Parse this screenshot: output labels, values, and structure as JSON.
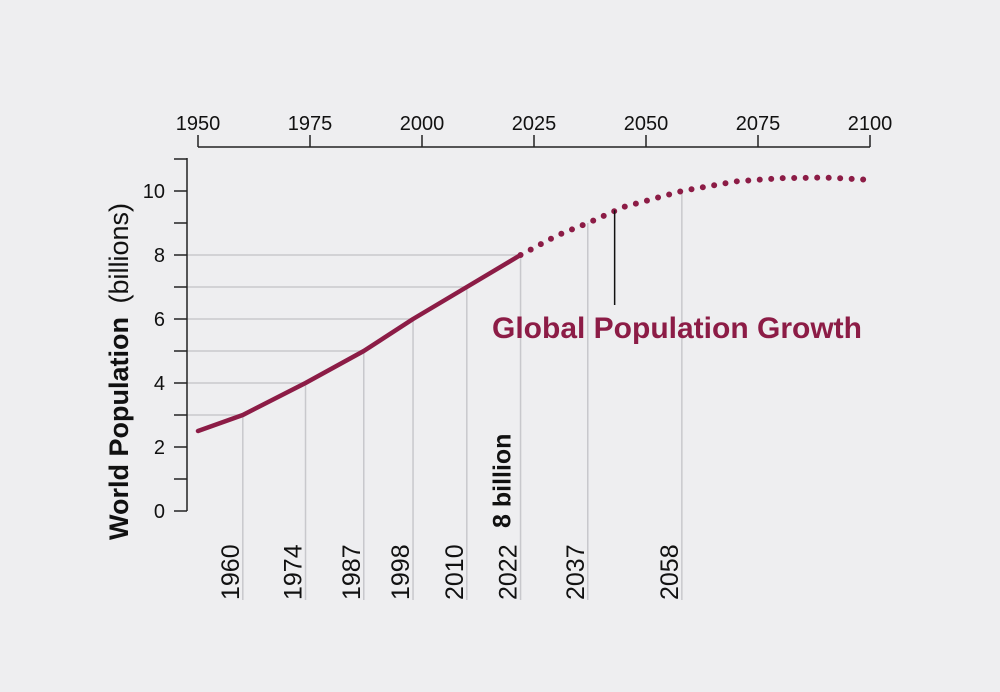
{
  "chart_data": {
    "type": "line",
    "ylabel_bold": "World Population",
    "ylabel_unit": "(billions)",
    "xlim": [
      1950,
      2100
    ],
    "ylim": [
      0,
      11
    ],
    "x_ticks": [
      1950,
      1975,
      2000,
      2025,
      2050,
      2075,
      2100
    ],
    "x_axis_position": "top",
    "y_ticks": [
      0,
      2,
      4,
      6,
      8,
      10
    ],
    "series": [
      {
        "label": "Global Population Growth",
        "color": "#8c1c46",
        "observed": {
          "x": [
            1950,
            1960,
            1974,
            1987,
            1998,
            2010,
            2022
          ],
          "y": [
            2.5,
            3.0,
            4.0,
            5.0,
            6.0,
            7.0,
            8.0
          ]
        },
        "projected": {
          "x": [
            2022,
            2030,
            2037,
            2045,
            2058,
            2070,
            2080,
            2090,
            2100
          ],
          "y": [
            8.0,
            8.6,
            9.0,
            9.5,
            10.0,
            10.3,
            10.4,
            10.42,
            10.35
          ]
        }
      }
    ],
    "milestones": [
      {
        "year": 1960,
        "value": 3,
        "label": "1960"
      },
      {
        "year": 1974,
        "value": 4,
        "label": "1974"
      },
      {
        "year": 1987,
        "value": 5,
        "label": "1987"
      },
      {
        "year": 1998,
        "value": 6,
        "label": "1998"
      },
      {
        "year": 2010,
        "value": 7,
        "label": "2010"
      },
      {
        "year": 2022,
        "value": 8,
        "label": "2022"
      },
      {
        "year": 2037,
        "value": 9,
        "label": "2037"
      },
      {
        "year": 2058,
        "value": 10,
        "label": "2058"
      }
    ],
    "highlight": "8 billion",
    "annotation": {
      "text": "Global Population Growth",
      "year": 2043,
      "value": 9.4
    }
  }
}
